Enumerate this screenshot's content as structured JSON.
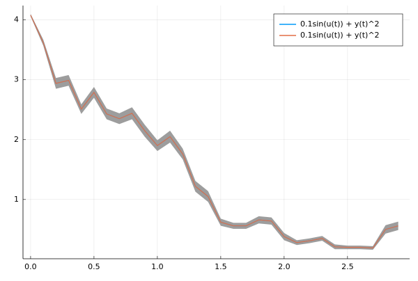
{
  "chart_data": {
    "type": "line",
    "x": [
      0,
      0.1,
      0.2,
      0.3,
      0.4,
      0.5,
      0.6,
      0.7,
      0.8,
      0.9,
      1.0,
      1.1,
      1.2,
      1.3,
      1.4,
      1.5,
      1.6,
      1.7,
      1.8,
      1.9,
      2.0,
      2.1,
      2.2,
      2.3,
      2.4,
      2.5,
      2.6,
      2.7,
      2.8,
      2.9
    ],
    "series": [
      {
        "name": "0.1sin(u(t)) + y(t)^2",
        "color": "#009af9",
        "values": [
          4.08,
          3.62,
          2.94,
          2.99,
          2.51,
          2.79,
          2.43,
          2.35,
          2.44,
          2.15,
          1.9,
          2.05,
          1.76,
          1.22,
          1.05,
          0.62,
          0.56,
          0.56,
          0.66,
          0.64,
          0.38,
          0.28,
          0.31,
          0.35,
          0.21,
          0.2,
          0.2,
          0.19,
          0.5,
          0.56
        ]
      },
      {
        "name": "0.1sin(u(t)) + y(t)^2",
        "color": "#e26f46",
        "ribbon_color": "#8c8c8c",
        "values": [
          4.08,
          3.62,
          2.94,
          2.99,
          2.51,
          2.79,
          2.43,
          2.35,
          2.44,
          2.15,
          1.9,
          2.05,
          1.76,
          1.22,
          1.05,
          0.62,
          0.56,
          0.56,
          0.66,
          0.64,
          0.38,
          0.28,
          0.31,
          0.35,
          0.21,
          0.2,
          0.2,
          0.19,
          0.5,
          0.56
        ],
        "errors": [
          0.02,
          0.05,
          0.09,
          0.09,
          0.08,
          0.09,
          0.09,
          0.09,
          0.1,
          0.1,
          0.09,
          0.1,
          0.09,
          0.09,
          0.09,
          0.06,
          0.05,
          0.05,
          0.06,
          0.06,
          0.06,
          0.04,
          0.04,
          0.04,
          0.04,
          0.03,
          0.03,
          0.03,
          0.07,
          0.07
        ]
      }
    ],
    "xlim": [
      -0.06,
      2.99
    ],
    "xticks": [
      {
        "value": 0,
        "label": "0.0"
      },
      {
        "value": 0.5,
        "label": "0.5"
      },
      {
        "value": 1,
        "label": "1.0"
      },
      {
        "value": 1.5,
        "label": "1.5"
      },
      {
        "value": 2,
        "label": "2.0"
      },
      {
        "value": 2.5,
        "label": "2.5"
      }
    ],
    "ylim": [
      0.01,
      4.24
    ],
    "yticks": [
      1,
      2,
      3,
      4
    ],
    "grid": true,
    "legend": "top-right"
  }
}
